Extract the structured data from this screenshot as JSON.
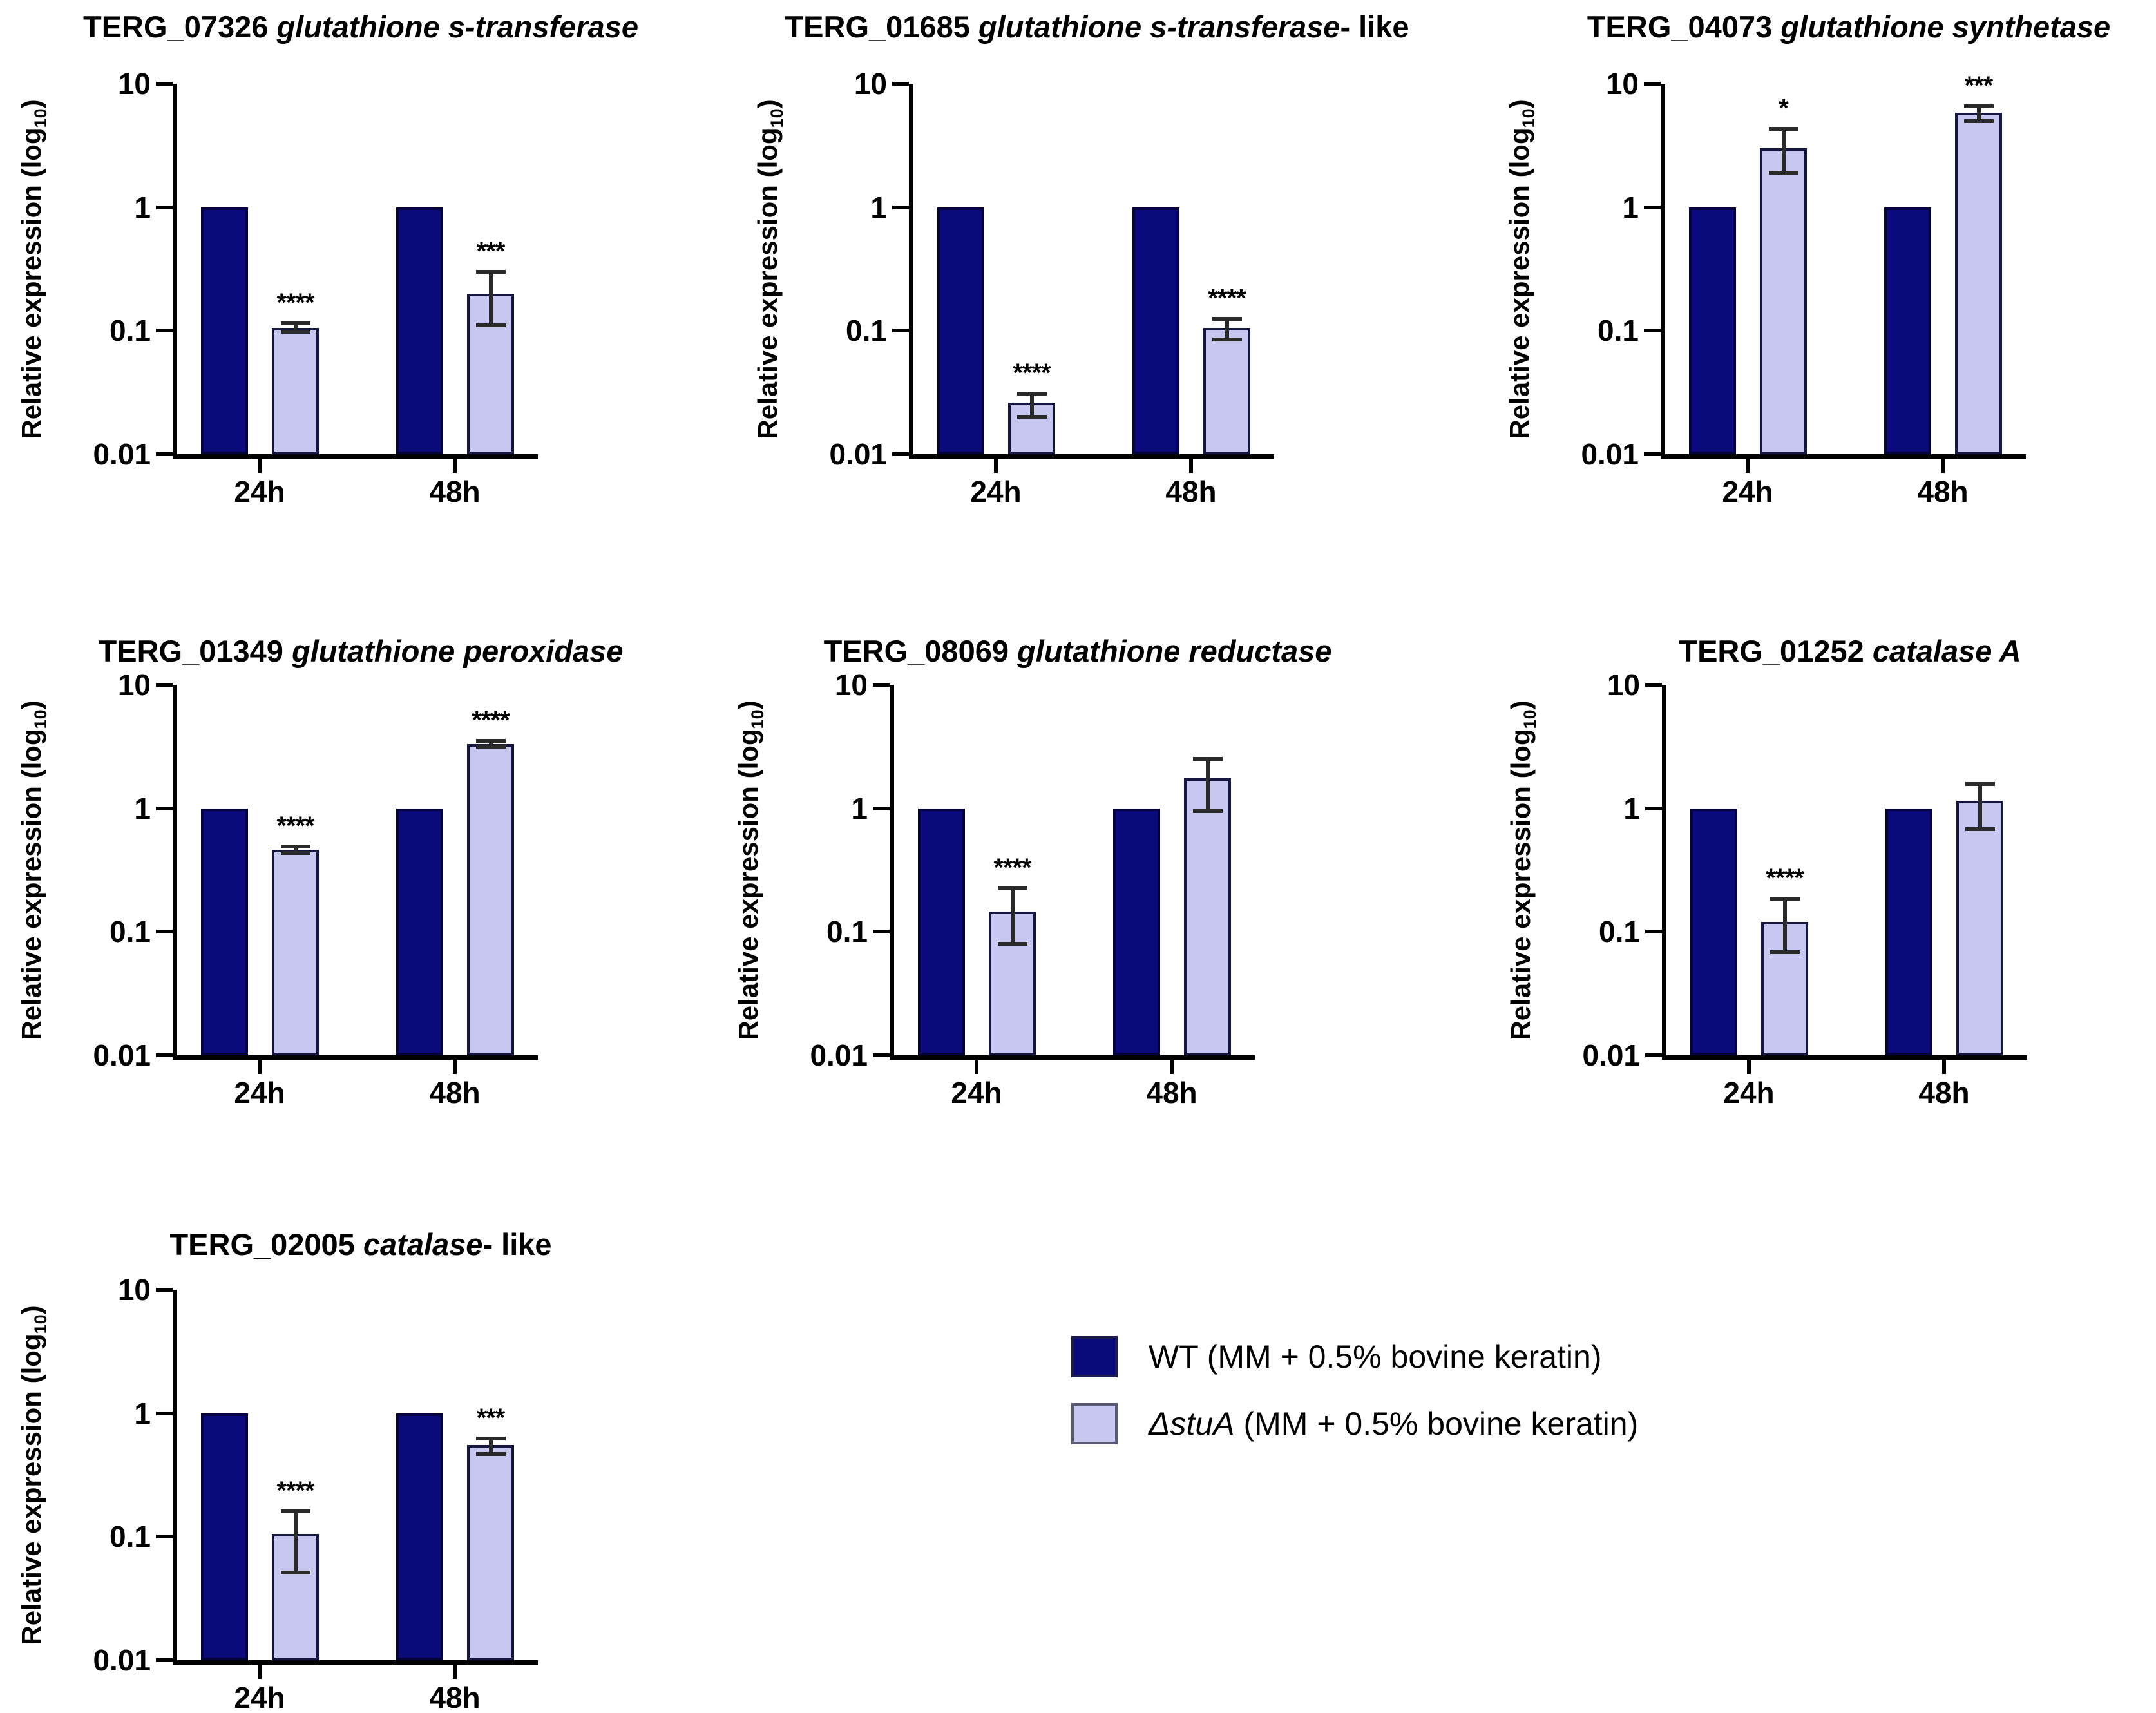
{
  "figure": {
    "background": "#ffffff"
  },
  "axis": {
    "ylabel_prefix": "Relative expression (log",
    "ylabel_sub": "10",
    "ylabel_suffix": ")"
  },
  "colors": {
    "wt_fill": "#0a0a7d",
    "wt_border": "#04043a",
    "stuA_fill": "#c7c7ef",
    "stuA_border": "#16163f",
    "axis": "#000000",
    "error_bar": "#2a2a2a"
  },
  "legend": {
    "items": [
      {
        "key": "wt",
        "color": "#0a0a7d",
        "border": "#1b1b52",
        "parts": [
          {
            "text": "WT (MM + 0.5% bovine keratin)",
            "italic": false
          }
        ]
      },
      {
        "key": "stuA",
        "color": "#c7c7ef",
        "border": "#5a5a75",
        "parts": [
          {
            "text": "ΔstuA",
            "italic": true
          },
          {
            "text": " (MM + 0.5% bovine keratin)",
            "italic": false
          }
        ]
      }
    ]
  },
  "chart_data": [
    {
      "type": "bar",
      "log_scale": true,
      "ylim": [
        0.01,
        10
      ],
      "yticks": [
        {
          "value": 10,
          "label": "10"
        },
        {
          "value": 1,
          "label": "1"
        },
        {
          "value": 0.1,
          "label": "0.1"
        },
        {
          "value": 0.01,
          "label": "0.01"
        }
      ],
      "title_parts": [
        {
          "text": "TERG_07326 ",
          "italic": false
        },
        {
          "text": "glutathione s-transferase",
          "italic": true
        }
      ],
      "categories": [
        "24h",
        "48h"
      ],
      "series": [
        {
          "name": "WT (MM + 0.5% bovine keratin)",
          "color_key": "wt",
          "values": [
            1,
            1
          ],
          "errors": [
            null,
            null
          ],
          "significance": [
            "",
            ""
          ]
        },
        {
          "name": "ΔstuA (MM + 0.5% bovine keratin)",
          "color_key": "stuA",
          "values": [
            0.105,
            0.2
          ],
          "errors": [
            [
              0.098,
              0.115
            ],
            [
              0.11,
              0.3
            ]
          ],
          "significance": [
            "****",
            "***"
          ]
        }
      ]
    },
    {
      "type": "bar",
      "log_scale": true,
      "ylim": [
        0.01,
        10
      ],
      "yticks": [
        {
          "value": 10,
          "label": "10"
        },
        {
          "value": 1,
          "label": "1"
        },
        {
          "value": 0.1,
          "label": "0.1"
        },
        {
          "value": 0.01,
          "label": "0.01"
        }
      ],
      "title_parts": [
        {
          "text": "TERG_01685 ",
          "italic": false
        },
        {
          "text": "glutathione s-transferase",
          "italic": true
        },
        {
          "text": "- like",
          "italic": false
        }
      ],
      "categories": [
        "24h",
        "48h"
      ],
      "series": [
        {
          "name": "WT (MM + 0.5% bovine keratin)",
          "color_key": "wt",
          "values": [
            1,
            1
          ],
          "errors": [
            null,
            null
          ],
          "significance": [
            "",
            ""
          ]
        },
        {
          "name": "ΔstuA (MM + 0.5% bovine keratin)",
          "color_key": "stuA",
          "values": [
            0.026,
            0.105
          ],
          "errors": [
            [
              0.02,
              0.031
            ],
            [
              0.085,
              0.125
            ]
          ],
          "significance": [
            "****",
            "****"
          ]
        }
      ]
    },
    {
      "type": "bar",
      "log_scale": true,
      "ylim": [
        0.01,
        10
      ],
      "yticks": [
        {
          "value": 10,
          "label": "10"
        },
        {
          "value": 1,
          "label": "1"
        },
        {
          "value": 0.1,
          "label": "0.1"
        },
        {
          "value": 0.01,
          "label": "0.01"
        }
      ],
      "title_parts": [
        {
          "text": "TERG_04073 ",
          "italic": false
        },
        {
          "text": "glutathione synthetase",
          "italic": true
        }
      ],
      "categories": [
        "24h",
        "48h"
      ],
      "series": [
        {
          "name": "WT (MM + 0.5% bovine keratin)",
          "color_key": "wt",
          "values": [
            1,
            1
          ],
          "errors": [
            null,
            null
          ],
          "significance": [
            "",
            ""
          ]
        },
        {
          "name": "ΔstuA (MM + 0.5% bovine keratin)",
          "color_key": "stuA",
          "values": [
            3.0,
            5.8
          ],
          "errors": [
            [
              1.9,
              4.3
            ],
            [
              5.0,
              6.6
            ]
          ],
          "significance": [
            "*",
            "***"
          ]
        }
      ]
    },
    {
      "type": "bar",
      "log_scale": true,
      "ylim": [
        0.01,
        10
      ],
      "yticks": [
        {
          "value": 10,
          "label": "10"
        },
        {
          "value": 1,
          "label": "1"
        },
        {
          "value": 0.1,
          "label": "0.1"
        },
        {
          "value": 0.01,
          "label": "0.01"
        }
      ],
      "title_parts": [
        {
          "text": "TERG_01349 ",
          "italic": false
        },
        {
          "text": "glutathione peroxidase",
          "italic": true
        }
      ],
      "categories": [
        "24h",
        "48h"
      ],
      "series": [
        {
          "name": "WT (MM + 0.5% bovine keratin)",
          "color_key": "wt",
          "values": [
            1,
            1
          ],
          "errors": [
            null,
            null
          ],
          "significance": [
            "",
            ""
          ]
        },
        {
          "name": "ΔstuA (MM + 0.5% bovine keratin)",
          "color_key": "stuA",
          "values": [
            0.46,
            3.3
          ],
          "errors": [
            [
              0.435,
              0.49
            ],
            [
              3.15,
              3.5
            ]
          ],
          "significance": [
            "****",
            "****"
          ]
        }
      ]
    },
    {
      "type": "bar",
      "log_scale": true,
      "ylim": [
        0.01,
        10
      ],
      "yticks": [
        {
          "value": 10,
          "label": "10"
        },
        {
          "value": 1,
          "label": "1"
        },
        {
          "value": 0.1,
          "label": "0.1"
        },
        {
          "value": 0.01,
          "label": "0.01"
        }
      ],
      "title_parts": [
        {
          "text": "TERG_08069 ",
          "italic": false
        },
        {
          "text": "glutathione reductase",
          "italic": true
        }
      ],
      "categories": [
        "24h",
        "48h"
      ],
      "series": [
        {
          "name": "WT (MM + 0.5% bovine keratin)",
          "color_key": "wt",
          "values": [
            1,
            1
          ],
          "errors": [
            null,
            null
          ],
          "significance": [
            "",
            ""
          ]
        },
        {
          "name": "ΔstuA (MM + 0.5% bovine keratin)",
          "color_key": "stuA",
          "values": [
            0.145,
            1.75
          ],
          "errors": [
            [
              0.08,
              0.225
            ],
            [
              0.95,
              2.5
            ]
          ],
          "significance": [
            "****",
            ""
          ]
        }
      ]
    },
    {
      "type": "bar",
      "log_scale": true,
      "ylim": [
        0.01,
        10
      ],
      "yticks": [
        {
          "value": 10,
          "label": "10"
        },
        {
          "value": 1,
          "label": "1"
        },
        {
          "value": 0.1,
          "label": "0.1"
        },
        {
          "value": 0.01,
          "label": "0.01"
        }
      ],
      "title_parts": [
        {
          "text": "TERG_01252 ",
          "italic": false
        },
        {
          "text": "catalase A",
          "italic": true
        }
      ],
      "categories": [
        "24h",
        "48h"
      ],
      "series": [
        {
          "name": "WT (MM + 0.5% bovine keratin)",
          "color_key": "wt",
          "values": [
            1,
            1
          ],
          "errors": [
            null,
            null
          ],
          "significance": [
            "",
            ""
          ]
        },
        {
          "name": "ΔstuA (MM + 0.5% bovine keratin)",
          "color_key": "stuA",
          "values": [
            0.12,
            1.15
          ],
          "errors": [
            [
              0.068,
              0.185
            ],
            [
              0.68,
              1.58
            ]
          ],
          "significance": [
            "****",
            ""
          ]
        }
      ]
    },
    {
      "type": "bar",
      "log_scale": true,
      "ylim": [
        0.01,
        10
      ],
      "yticks": [
        {
          "value": 10,
          "label": "10"
        },
        {
          "value": 1,
          "label": "1"
        },
        {
          "value": 0.1,
          "label": "0.1"
        },
        {
          "value": 0.01,
          "label": "0.01"
        }
      ],
      "title_parts": [
        {
          "text": "TERG_02005 ",
          "italic": false
        },
        {
          "text": "catalase",
          "italic": true
        },
        {
          "text": "- like",
          "italic": false
        }
      ],
      "categories": [
        "24h",
        "48h"
      ],
      "series": [
        {
          "name": "WT (MM + 0.5% bovine keratin)",
          "color_key": "wt",
          "values": [
            1,
            1
          ],
          "errors": [
            null,
            null
          ],
          "significance": [
            "",
            ""
          ]
        },
        {
          "name": "ΔstuA (MM + 0.5% bovine keratin)",
          "color_key": "stuA",
          "values": [
            0.105,
            0.55
          ],
          "errors": [
            [
              0.051,
              0.16
            ],
            [
              0.47,
              0.62
            ]
          ],
          "significance": [
            "****",
            "***"
          ]
        }
      ]
    }
  ]
}
